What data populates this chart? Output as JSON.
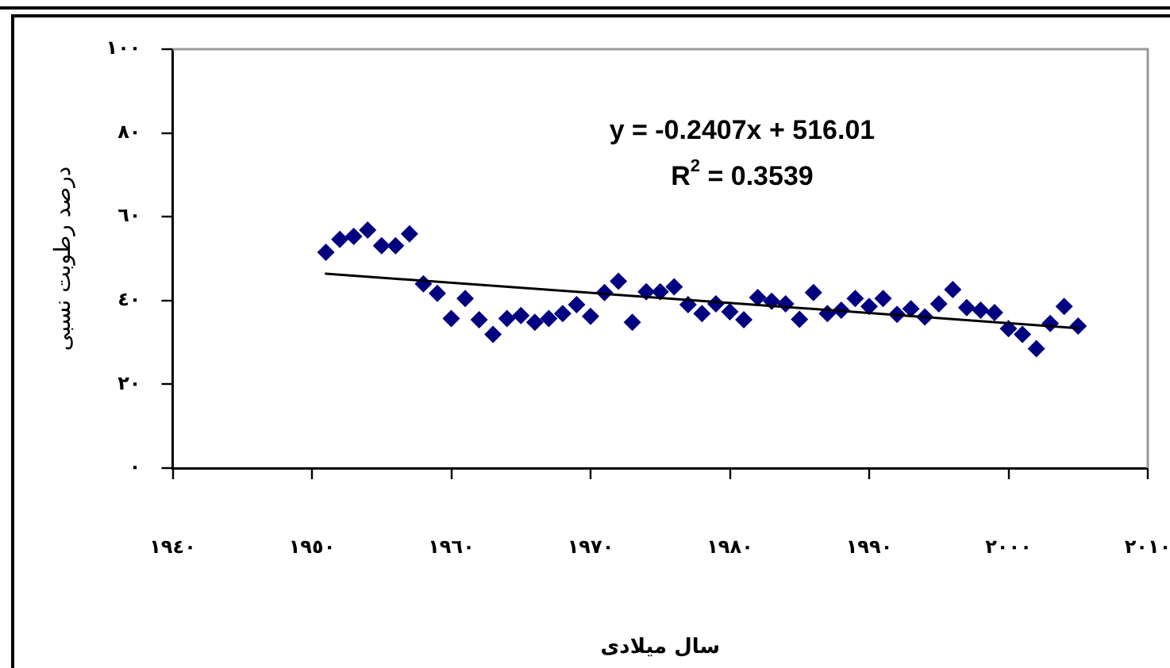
{
  "chart_data": {
    "type": "scatter",
    "xlabel": "سال میلادی",
    "ylabel": "درصد رطوبت نسبی",
    "annotations": [
      "y = -0.2407x + 516.01",
      "R$^{2}$ = 0.3539"
    ],
    "x": [
      1951,
      1952,
      1953,
      1954,
      1955,
      1956,
      1957,
      1958,
      1959,
      1960,
      1961,
      1962,
      1963,
      1964,
      1965,
      1966,
      1967,
      1968,
      1969,
      1970,
      1971,
      1972,
      1973,
      1974,
      1975,
      1976,
      1977,
      1978,
      1979,
      1980,
      1981,
      1982,
      1983,
      1984,
      1985,
      1986,
      1987,
      1988,
      1989,
      1990,
      1991,
      1992,
      1993,
      1994,
      1995,
      1996,
      1997,
      1998,
      1999,
      2000,
      2001,
      2002,
      2003,
      2004,
      2005
    ],
    "series": [
      {
        "color": "#000080",
        "marker": "diamond",
        "values": [
          51.5,
          54.6,
          55.3,
          56.8,
          53.1,
          53.1,
          55.9,
          44.0,
          41.7,
          35.7,
          40.5,
          35.4,
          31.9,
          35.7,
          36.4,
          34.8,
          35.7,
          36.9,
          39.0,
          36.2,
          41.9,
          44.6,
          34.8,
          42.1,
          42.1,
          43.3,
          39.0,
          36.9,
          39.2,
          37.3,
          35.4,
          40.7,
          39.8,
          39.2,
          35.5,
          41.9,
          36.9,
          37.7,
          40.5,
          38.6,
          40.5,
          36.7,
          38.0,
          36.1,
          39.2,
          42.6,
          38.3,
          37.7,
          37.1,
          33.3,
          31.9,
          28.5,
          34.5,
          38.6,
          33.9
        ]
      },
      {
        "type": "line",
        "color": "#000000",
        "marker": "none",
        "line_style": "solid",
        "x": [
          1951,
          2005
        ],
        "values": [
          46.4,
          33.4
        ]
      }
    ],
    "xlim": [
      1940,
      2010
    ],
    "xticks": [
      {
        "value": 1940,
        "label": "١٩٤٠"
      },
      {
        "value": 1950,
        "label": "١٩٥٠"
      },
      {
        "value": 1960,
        "label": "١٩٦٠"
      },
      {
        "value": 1970,
        "label": "١٩٧٠"
      },
      {
        "value": 1980,
        "label": "١٩٨٠"
      },
      {
        "value": 1990,
        "label": "١٩٩٠"
      },
      {
        "value": 2000,
        "label": "٢٠٠٠"
      },
      {
        "value": 2010,
        "label": "٢٠١٠"
      }
    ],
    "ylim": [
      0,
      100
    ],
    "yticks": [
      {
        "value": 0,
        "label": "٠"
      },
      {
        "value": 20,
        "label": "٢٠"
      },
      {
        "value": 40,
        "label": "٤٠"
      },
      {
        "value": 60,
        "label": "٦٠"
      },
      {
        "value": 80,
        "label": "٨٠"
      },
      {
        "value": 100,
        "label": "١٠٠"
      }
    ]
  }
}
